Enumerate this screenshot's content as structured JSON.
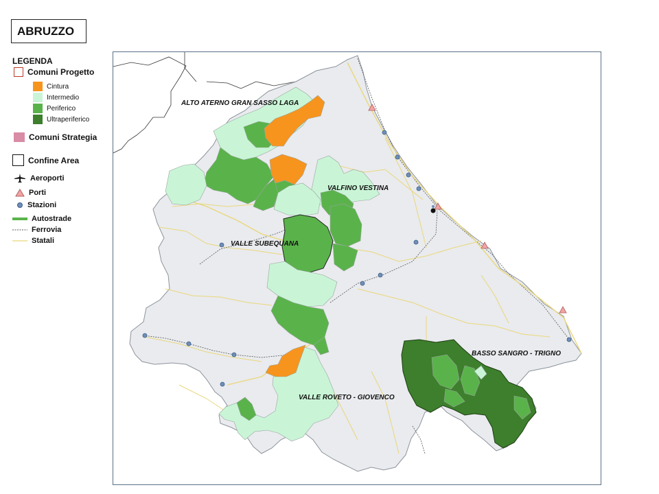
{
  "title": "ABRUZZO",
  "legend": {
    "heading": "LEGENDA",
    "comuni_progetto": "Comuni Progetto",
    "classes": [
      {
        "label": "Cintura",
        "color": "#f7941d"
      },
      {
        "label": "Intermedio",
        "color": "#c9f5d6"
      },
      {
        "label": "Periferico",
        "color": "#5ab34a"
      },
      {
        "label": "Ultraperiferico",
        "color": "#3d7f2c"
      }
    ],
    "comuni_strategia": "Comuni Strategia",
    "confine_area": "Confine Area",
    "aeroporti": "Aeroporti",
    "porti": "Porti",
    "stazioni": "Stazioni",
    "autostrade": "Autostrade",
    "ferrovia": "Ferrovia",
    "statali": "Statali"
  },
  "areas": [
    {
      "name": "ALTO ATERNO GRAN SASSO LAGA"
    },
    {
      "name": "VALFINO VESTINA"
    },
    {
      "name": "VALLE SUBEQUANA"
    },
    {
      "name": "BASSO SANGRO - TRIGNO"
    },
    {
      "name": "VALLE ROVETO - GIOVENCO"
    }
  ],
  "colors": {
    "region_fill": "#e9ebee",
    "region_stroke": "#8c939b",
    "strategia": "#d98ca6",
    "porti": "#f2a3a3",
    "stazioni": "#6f8fb8",
    "statali": "#ead77a",
    "ferrovia": "#555555",
    "autostrade": "#5ab34a",
    "frame": "#5a6f86"
  }
}
